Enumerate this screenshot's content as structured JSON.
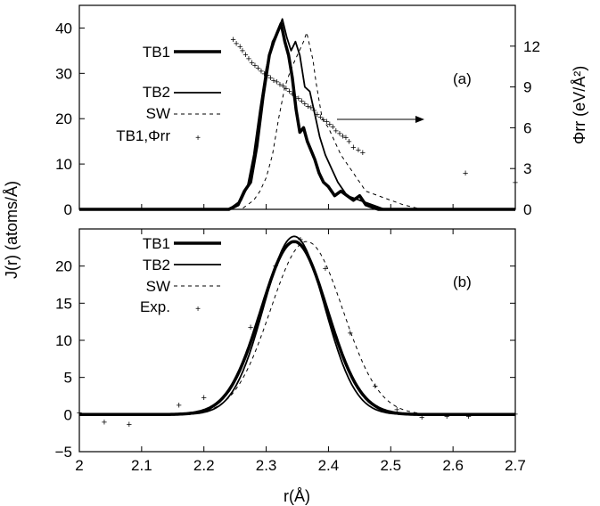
{
  "chart_data": [
    {
      "id": "panel-a",
      "type": "line",
      "panel_label": "(a)",
      "xlim": [
        2.0,
        2.7
      ],
      "ylim": [
        0,
        45
      ],
      "y2lim": [
        0,
        15
      ],
      "yticks": [
        "0",
        "10",
        "20",
        "30",
        "40"
      ],
      "y2ticks": [
        "0",
        "3",
        "6",
        "9",
        "12"
      ],
      "y2label": "Φrr (eV/Å²)",
      "legend_position": "upper-left",
      "series": [
        {
          "name": "TB1",
          "style": "thick",
          "x": [
            2.0,
            2.24,
            2.255,
            2.265,
            2.275,
            2.285,
            2.295,
            2.305,
            2.312,
            2.318,
            2.324,
            2.33,
            2.336,
            2.342,
            2.348,
            2.354,
            2.36,
            2.366,
            2.372,
            2.378,
            2.385,
            2.392,
            2.4,
            2.41,
            2.42,
            2.43,
            2.44,
            2.45,
            2.46,
            2.47,
            2.48,
            2.7
          ],
          "values": [
            0,
            0,
            1,
            4,
            6,
            14,
            25,
            34,
            37,
            39,
            41,
            37,
            34,
            29,
            22,
            17,
            18,
            15,
            13,
            11,
            8,
            6,
            5,
            3,
            4,
            3,
            2,
            3,
            1,
            0.5,
            0,
            0
          ]
        },
        {
          "name": "TB2",
          "style": "medium",
          "x": [
            2.0,
            2.24,
            2.26,
            2.27,
            2.28,
            2.29,
            2.3,
            2.31,
            2.318,
            2.326,
            2.333,
            2.34,
            2.347,
            2.354,
            2.362,
            2.37,
            2.378,
            2.386,
            2.395,
            2.405,
            2.415,
            2.43,
            2.45,
            2.47,
            2.49,
            2.7
          ],
          "values": [
            0,
            0,
            2,
            5,
            12,
            22,
            31,
            37,
            39,
            42,
            38,
            35,
            37,
            34,
            27,
            26,
            21,
            16,
            12,
            9,
            6,
            3,
            2,
            1,
            0,
            0
          ]
        },
        {
          "name": "SW",
          "style": "dashed",
          "x": [
            2.0,
            2.26,
            2.28,
            2.29,
            2.3,
            2.31,
            2.32,
            2.33,
            2.34,
            2.35,
            2.36,
            2.365,
            2.37,
            2.375,
            2.38,
            2.385,
            2.39,
            2.4,
            2.41,
            2.42,
            2.43,
            2.44,
            2.45,
            2.46,
            2.48,
            2.5,
            2.52,
            2.55,
            2.58,
            2.7
          ],
          "values": [
            0,
            0,
            2,
            4,
            7,
            12,
            20,
            27,
            31,
            34,
            37,
            39,
            36,
            33,
            28,
            24,
            20,
            18,
            15,
            12,
            10,
            8,
            6,
            4,
            3,
            2,
            1,
            0,
            0,
            0
          ]
        },
        {
          "name": "TB1,Φrr",
          "style": "points",
          "axis": "y2",
          "x": [
            2.247,
            2.252,
            2.258,
            2.262,
            2.267,
            2.272,
            2.277,
            2.282,
            2.287,
            2.292,
            2.297,
            2.302,
            2.307,
            2.312,
            2.317,
            2.322,
            2.327,
            2.332,
            2.337,
            2.342,
            2.347,
            2.352,
            2.357,
            2.362,
            2.367,
            2.372,
            2.377,
            2.382,
            2.387,
            2.392,
            2.397,
            2.402,
            2.407,
            2.412,
            2.418,
            2.423,
            2.428,
            2.433,
            2.44,
            2.448,
            2.455,
            2.62,
            2.7
          ],
          "values": [
            12.5,
            12.2,
            12.0,
            11.7,
            11.4,
            11.1,
            10.8,
            10.6,
            10.4,
            10.2,
            10.0,
            9.9,
            9.7,
            9.5,
            9.4,
            9.2,
            9.1,
            8.9,
            8.7,
            8.5,
            8.3,
            8.2,
            8.0,
            7.8,
            7.6,
            7.5,
            7.3,
            7.0,
            6.8,
            6.6,
            6.5,
            6.3,
            6.1,
            5.8,
            5.6,
            5.4,
            5.3,
            5.0,
            4.6,
            4.4,
            4.2,
            2.7,
            2.0
          ]
        }
      ]
    },
    {
      "id": "panel-b",
      "type": "line",
      "panel_label": "(b)",
      "xlim": [
        2.0,
        2.7
      ],
      "ylim": [
        -5,
        25
      ],
      "xticks": [
        "2",
        "2.1",
        "2.2",
        "2.3",
        "2.4",
        "2.5",
        "2.6",
        "2.7"
      ],
      "yticks": [
        "−5",
        "0",
        "5",
        "10",
        "15",
        "20"
      ],
      "xlabel": "r(Å)",
      "ylabel": "J(r) (atoms/Å)",
      "legend_position": "upper-left",
      "series": [
        {
          "name": "TB1",
          "style": "thick",
          "peak": 23.3,
          "center": 2.345,
          "width": 0.053
        },
        {
          "name": "TB2",
          "style": "medium",
          "peak": 24.0,
          "center": 2.345,
          "width": 0.049
        },
        {
          "name": "SW",
          "style": "dashed",
          "peak": 23.3,
          "center": 2.365,
          "width": 0.058
        },
        {
          "name": "Exp.",
          "style": "points",
          "x": [
            2.0,
            2.04,
            2.08,
            2.16,
            2.2,
            2.275,
            2.315,
            2.355,
            2.395,
            2.435,
            2.475,
            2.51,
            2.55,
            2.59,
            2.625,
            2.7
          ],
          "values": [
            0.3,
            -1.0,
            -1.3,
            1.3,
            2.3,
            11.8,
            20.1,
            23.6,
            19.7,
            11.0,
            3.9,
            0.7,
            -0.3,
            -0.2,
            -0.2,
            0.1
          ]
        }
      ]
    }
  ],
  "colors": {
    "line": "#000000",
    "background": "#ffffff"
  }
}
